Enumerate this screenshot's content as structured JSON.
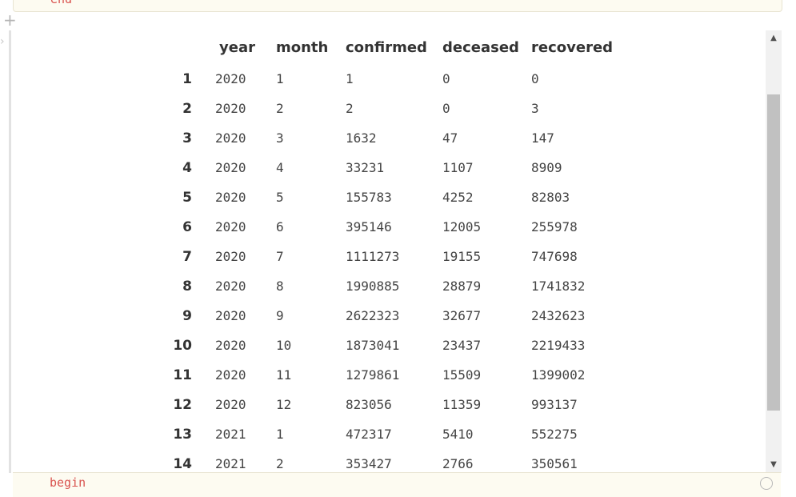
{
  "top_cell": {
    "code": "end"
  },
  "bottom_cell": {
    "code": "begin"
  },
  "icons": {
    "add_cell": "plus-icon",
    "collapse": "chevron-right-icon",
    "scroll_up": "triangle-up-icon",
    "scroll_down": "triangle-down-icon"
  },
  "table": {
    "columns": [
      "year",
      "month",
      "confirmed",
      "deceased",
      "recovered"
    ],
    "rows": [
      {
        "index": "1",
        "year": "2020",
        "month": "1",
        "confirmed": "1",
        "deceased": "0",
        "recovered": "0"
      },
      {
        "index": "2",
        "year": "2020",
        "month": "2",
        "confirmed": "2",
        "deceased": "0",
        "recovered": "3"
      },
      {
        "index": "3",
        "year": "2020",
        "month": "3",
        "confirmed": "1632",
        "deceased": "47",
        "recovered": "147"
      },
      {
        "index": "4",
        "year": "2020",
        "month": "4",
        "confirmed": "33231",
        "deceased": "1107",
        "recovered": "8909"
      },
      {
        "index": "5",
        "year": "2020",
        "month": "5",
        "confirmed": "155783",
        "deceased": "4252",
        "recovered": "82803"
      },
      {
        "index": "6",
        "year": "2020",
        "month": "6",
        "confirmed": "395146",
        "deceased": "12005",
        "recovered": "255978"
      },
      {
        "index": "7",
        "year": "2020",
        "month": "7",
        "confirmed": "1111273",
        "deceased": "19155",
        "recovered": "747698"
      },
      {
        "index": "8",
        "year": "2020",
        "month": "8",
        "confirmed": "1990885",
        "deceased": "28879",
        "recovered": "1741832"
      },
      {
        "index": "9",
        "year": "2020",
        "month": "9",
        "confirmed": "2622323",
        "deceased": "32677",
        "recovered": "2432623"
      },
      {
        "index": "10",
        "year": "2020",
        "month": "10",
        "confirmed": "1873041",
        "deceased": "23437",
        "recovered": "2219433"
      },
      {
        "index": "11",
        "year": "2020",
        "month": "11",
        "confirmed": "1279861",
        "deceased": "15509",
        "recovered": "1399002"
      },
      {
        "index": "12",
        "year": "2020",
        "month": "12",
        "confirmed": "823056",
        "deceased": "11359",
        "recovered": "993137"
      },
      {
        "index": "13",
        "year": "2021",
        "month": "1",
        "confirmed": "472317",
        "deceased": "5410",
        "recovered": "552275"
      },
      {
        "index": "14",
        "year": "2021",
        "month": "2",
        "confirmed": "353427",
        "deceased": "2766",
        "recovered": "350561"
      }
    ]
  }
}
